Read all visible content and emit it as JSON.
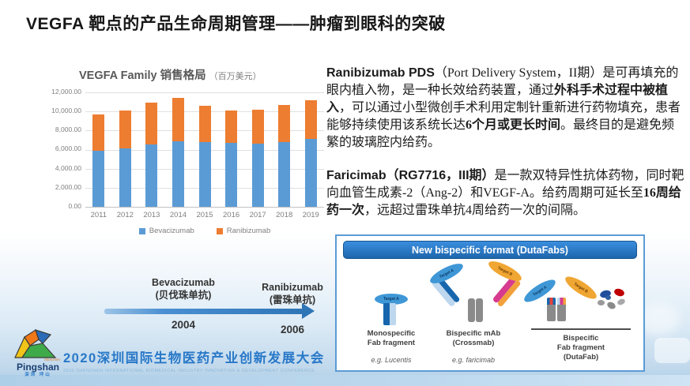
{
  "slide": {
    "title": "VEGFA 靶点的产品生命周期管理——肿瘤到眼科的突破"
  },
  "chart": {
    "title": "VEGFA Family 销售格局",
    "title_unit": "（百万美元）",
    "y_ticks": [
      "12,000.00",
      "10,000.00",
      "8,000.00",
      "6,000.00",
      "4,000.00",
      "2,000.00",
      "0.00"
    ]
  },
  "chart_data": {
    "type": "bar",
    "stacked": true,
    "title": "VEGFA Family 销售格局（百万美元）",
    "unit": "百万美元",
    "categories": [
      "2011",
      "2012",
      "2013",
      "2014",
      "2015",
      "2016",
      "2017",
      "2018",
      "2019"
    ],
    "series": [
      {
        "name": "Bevacizumab",
        "color": "#5b9bd5",
        "values": [
          5900,
          6100,
          6500,
          6900,
          6800,
          6700,
          6600,
          6800,
          7100
        ]
      },
      {
        "name": "Ranibizumab",
        "color": "#ed7d31",
        "values": [
          3800,
          4000,
          4400,
          4500,
          3800,
          3400,
          3600,
          3900,
          4100
        ]
      }
    ],
    "xlabel": "",
    "ylabel": "",
    "ylim": [
      0,
      12000
    ],
    "ytick_step": 2000,
    "grid": true,
    "legend_position": "bottom"
  },
  "paragraphs": [
    {
      "parts": [
        {
          "t": "Ranibizumab PDS",
          "b": true,
          "sans": true
        },
        {
          "t": "（Port Delivery System，II期）是可再填充的眼内植入物，是一种长效给药装置，通过",
          "b": false
        },
        {
          "t": "外科手术过程中被植入",
          "b": true
        },
        {
          "t": "，可以通过小型微创手术利用定制针重新进行药物填充，患者能够持续使用该系统长达",
          "b": false
        },
        {
          "t": "6个月或更长时间",
          "b": true
        },
        {
          "t": "。最终目的是避免频繁的玻璃腔内给药。",
          "b": false
        }
      ]
    },
    {
      "parts": [
        {
          "t": "Faricimab（RG7716，III期）",
          "b": true,
          "sans": true
        },
        {
          "t": "是一款双特异性抗体药物，同时靶向血管生成素-2（Ang-2）和VEGF-A。给药周期可延长至",
          "b": false
        },
        {
          "t": "16周给药一次",
          "b": true
        },
        {
          "t": "，远超过雷珠单抗4周给药一次的间隔。",
          "b": false
        }
      ]
    }
  ],
  "timeline": {
    "items": [
      {
        "name": "Bevacizumab",
        "cn": "(贝伐珠单抗)",
        "year": "2004"
      },
      {
        "name": "Ranibizumab",
        "cn": "(雷珠单抗)",
        "year": "2006"
      }
    ]
  },
  "panel": {
    "header": "New bispecific format (DutaFabs)",
    "target_a": "Target A",
    "target_b": "Target B",
    "items": [
      {
        "lines": [
          "Monospecific",
          "Fab fragment"
        ],
        "example": "e.g. Lucentis"
      },
      {
        "lines": [
          "Bispecific mAb",
          "(Crossmab)"
        ],
        "example": "e.g. faricimab"
      },
      {
        "lines": [
          "Bispecific",
          "Fab fragment",
          "(DutaFab)"
        ],
        "example": ""
      }
    ]
  },
  "footer": {
    "logo_region": "Shenzhen",
    "logo_name": "Pingshan",
    "logo_cn": "深圳 坪山",
    "conference_cn": "2020深圳国际生物医药产业创新发展大会",
    "conference_en": "2020 SHENZHEN INTERNATIONAL BIOMEDICAL INDUSTRY INNOVATION & DEVELOPMENT CONFERENCE"
  }
}
